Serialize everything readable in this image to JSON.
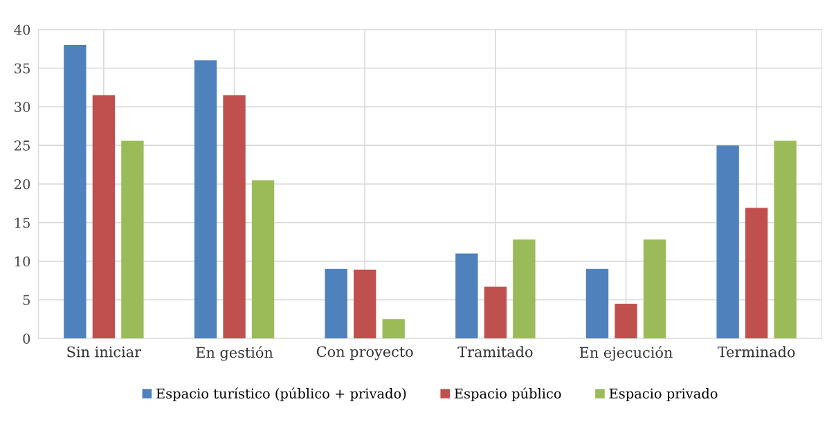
{
  "chart_data": {
    "type": "bar",
    "categories": [
      "Sin iniciar",
      "En gestión",
      "Con proyecto",
      "Tramitado",
      "En ejecución",
      "Terminado"
    ],
    "series": [
      {
        "name": "Espacio turístico (público + privado)",
        "color": "#4f81bd",
        "values": [
          38,
          36,
          9,
          11,
          9,
          25
        ]
      },
      {
        "name": "Espacio público",
        "color": "#c0504d",
        "values": [
          31.5,
          31.5,
          8.9,
          6.7,
          4.5,
          16.9
        ]
      },
      {
        "name": "Espacio privado",
        "color": "#9bbb59",
        "values": [
          25.6,
          20.5,
          2.5,
          12.8,
          12.8,
          25.6
        ]
      }
    ],
    "ylim": [
      0,
      40
    ],
    "yticks": [
      0,
      5,
      10,
      15,
      20,
      25,
      30,
      35,
      40
    ],
    "grid": true,
    "legend": "bottom"
  }
}
